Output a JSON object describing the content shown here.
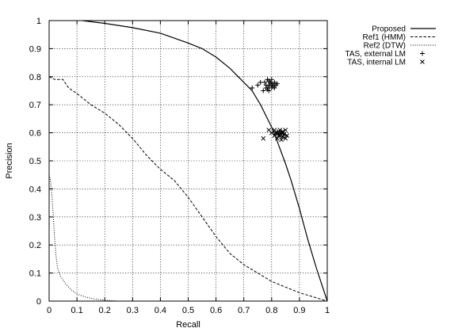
{
  "chart_data": {
    "type": "line",
    "xlabel": "Recall",
    "ylabel": "Precision",
    "xlim": [
      0,
      1
    ],
    "ylim": [
      0,
      1
    ],
    "grid": true,
    "legend_position": "top-right, outside plot",
    "xticks": [
      "0",
      "0.1",
      "0.2",
      "0.3",
      "0.4",
      "0.5",
      "0.6",
      "0.7",
      "0.8",
      "0.9",
      "1"
    ],
    "yticks": [
      "0",
      "0.1",
      "0.2",
      "0.3",
      "0.4",
      "0.5",
      "0.6",
      "0.7",
      "0.8",
      "0.9",
      "1"
    ],
    "series": [
      {
        "name": "Proposed",
        "style": "solid",
        "x": [
          0.12,
          0.2,
          0.3,
          0.4,
          0.5,
          0.55,
          0.6,
          0.65,
          0.7,
          0.73,
          0.76,
          0.78,
          0.8,
          0.82,
          0.85,
          0.87,
          0.9,
          0.93,
          0.96,
          0.98,
          1.0
        ],
        "y": [
          1.0,
          0.99,
          0.975,
          0.955,
          0.92,
          0.9,
          0.87,
          0.83,
          0.78,
          0.75,
          0.7,
          0.66,
          0.62,
          0.57,
          0.49,
          0.43,
          0.33,
          0.22,
          0.12,
          0.06,
          0.0
        ]
      },
      {
        "name": "Ref1 (HMM)",
        "style": "dashed",
        "x": [
          0.0,
          0.02,
          0.05,
          0.07,
          0.1,
          0.15,
          0.2,
          0.25,
          0.3,
          0.35,
          0.4,
          0.45,
          0.5,
          0.55,
          0.6,
          0.65,
          0.7,
          0.75,
          0.8,
          0.85,
          0.9,
          0.95,
          1.0
        ],
        "y": [
          0.8,
          0.79,
          0.79,
          0.76,
          0.74,
          0.7,
          0.67,
          0.63,
          0.58,
          0.52,
          0.47,
          0.43,
          0.37,
          0.3,
          0.23,
          0.17,
          0.13,
          0.1,
          0.07,
          0.05,
          0.03,
          0.015,
          0.0
        ]
      },
      {
        "name": "Ref2 (DTW)",
        "style": "dotted",
        "x": [
          0.0,
          0.005,
          0.01,
          0.015,
          0.02,
          0.025,
          0.03,
          0.04,
          0.06,
          0.08,
          0.1,
          0.13,
          0.16,
          0.2,
          0.25
        ],
        "y": [
          0.45,
          0.43,
          0.38,
          0.3,
          0.22,
          0.16,
          0.12,
          0.09,
          0.06,
          0.04,
          0.025,
          0.015,
          0.008,
          0.003,
          0.0
        ]
      },
      {
        "name": "TAS, external LM",
        "style": "marker-plus",
        "x": [
          0.73,
          0.75,
          0.76,
          0.77,
          0.775,
          0.78,
          0.785,
          0.79,
          0.79,
          0.795,
          0.8,
          0.8,
          0.805,
          0.81,
          0.81,
          0.815,
          0.82,
          0.78,
          0.79,
          0.8,
          0.785,
          0.795,
          0.805,
          0.8,
          0.79
        ],
        "y": [
          0.76,
          0.77,
          0.78,
          0.75,
          0.78,
          0.76,
          0.79,
          0.77,
          0.75,
          0.78,
          0.76,
          0.79,
          0.77,
          0.76,
          0.78,
          0.77,
          0.775,
          0.77,
          0.765,
          0.77,
          0.755,
          0.78,
          0.765,
          0.775,
          0.785
        ]
      },
      {
        "name": "TAS, internal LM",
        "style": "marker-x",
        "x": [
          0.77,
          0.79,
          0.8,
          0.81,
          0.81,
          0.82,
          0.82,
          0.825,
          0.83,
          0.83,
          0.835,
          0.84,
          0.84,
          0.845,
          0.85,
          0.85,
          0.855,
          0.82,
          0.83,
          0.84,
          0.815,
          0.835,
          0.845,
          0.825
        ],
        "y": [
          0.58,
          0.61,
          0.6,
          0.59,
          0.61,
          0.6,
          0.58,
          0.605,
          0.59,
          0.61,
          0.6,
          0.585,
          0.6,
          0.595,
          0.61,
          0.58,
          0.59,
          0.595,
          0.6,
          0.605,
          0.6,
          0.575,
          0.595,
          0.59
        ]
      }
    ]
  }
}
